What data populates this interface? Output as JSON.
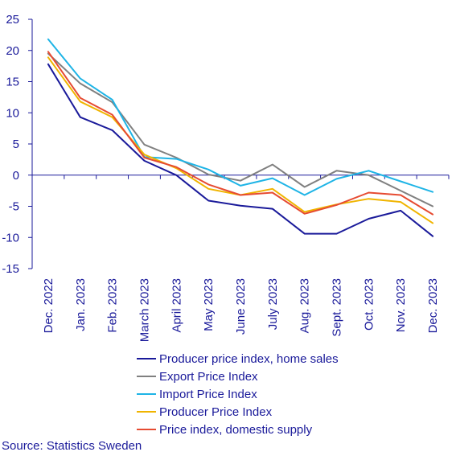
{
  "chart_data": {
    "type": "line",
    "categories": [
      "Dec. 2022",
      "Jan. 2023",
      "Feb. 2023",
      "March 2023",
      "April 2023",
      "May 2023",
      "June 2023",
      "July 2023",
      "Aug. 2023",
      "Sept. 2023",
      "Oct. 2023",
      "Nov. 2023",
      "Dec. 2023"
    ],
    "ylim": [
      -15,
      25
    ],
    "yticks": [
      25,
      20,
      15,
      10,
      5,
      0,
      -5,
      -10,
      -15
    ],
    "grid": false,
    "legend_placement": "bottom",
    "series": [
      {
        "name": "Producer price index, home sales",
        "color": "#1a1a9a",
        "values": [
          17.8,
          9.3,
          7.2,
          2.3,
          0.0,
          -4.1,
          -4.9,
          -5.4,
          -9.4,
          -9.4,
          -7.0,
          -5.7,
          -9.8
        ]
      },
      {
        "name": "Export Price Index",
        "color": "#808080",
        "values": [
          19.5,
          14.7,
          11.7,
          4.9,
          2.8,
          0.1,
          -0.9,
          1.7,
          -1.9,
          0.7,
          0.0,
          -2.5,
          -5.0
        ]
      },
      {
        "name": "Import Price Index",
        "color": "#1eb4e6",
        "values": [
          21.8,
          15.5,
          12.1,
          2.9,
          2.6,
          0.9,
          -1.7,
          -0.5,
          -3.2,
          -0.6,
          0.7,
          -1.0,
          -2.7
        ]
      },
      {
        "name": "Producer Price Index",
        "color": "#f0b400",
        "values": [
          18.9,
          11.8,
          9.3,
          3.3,
          1.1,
          -2.2,
          -3.2,
          -2.2,
          -5.9,
          -4.7,
          -3.8,
          -4.3,
          -7.7
        ]
      },
      {
        "name": "Price index, domestic supply",
        "color": "#e64b32",
        "values": [
          19.8,
          12.4,
          9.7,
          2.8,
          1.3,
          -1.5,
          -3.2,
          -2.8,
          -6.2,
          -4.8,
          -2.8,
          -3.2,
          -6.3
        ]
      }
    ]
  },
  "source": "Source: Statistics Sweden",
  "colors": {
    "axis": "#1a1a9a",
    "zero_line": "#1a1a9a"
  }
}
